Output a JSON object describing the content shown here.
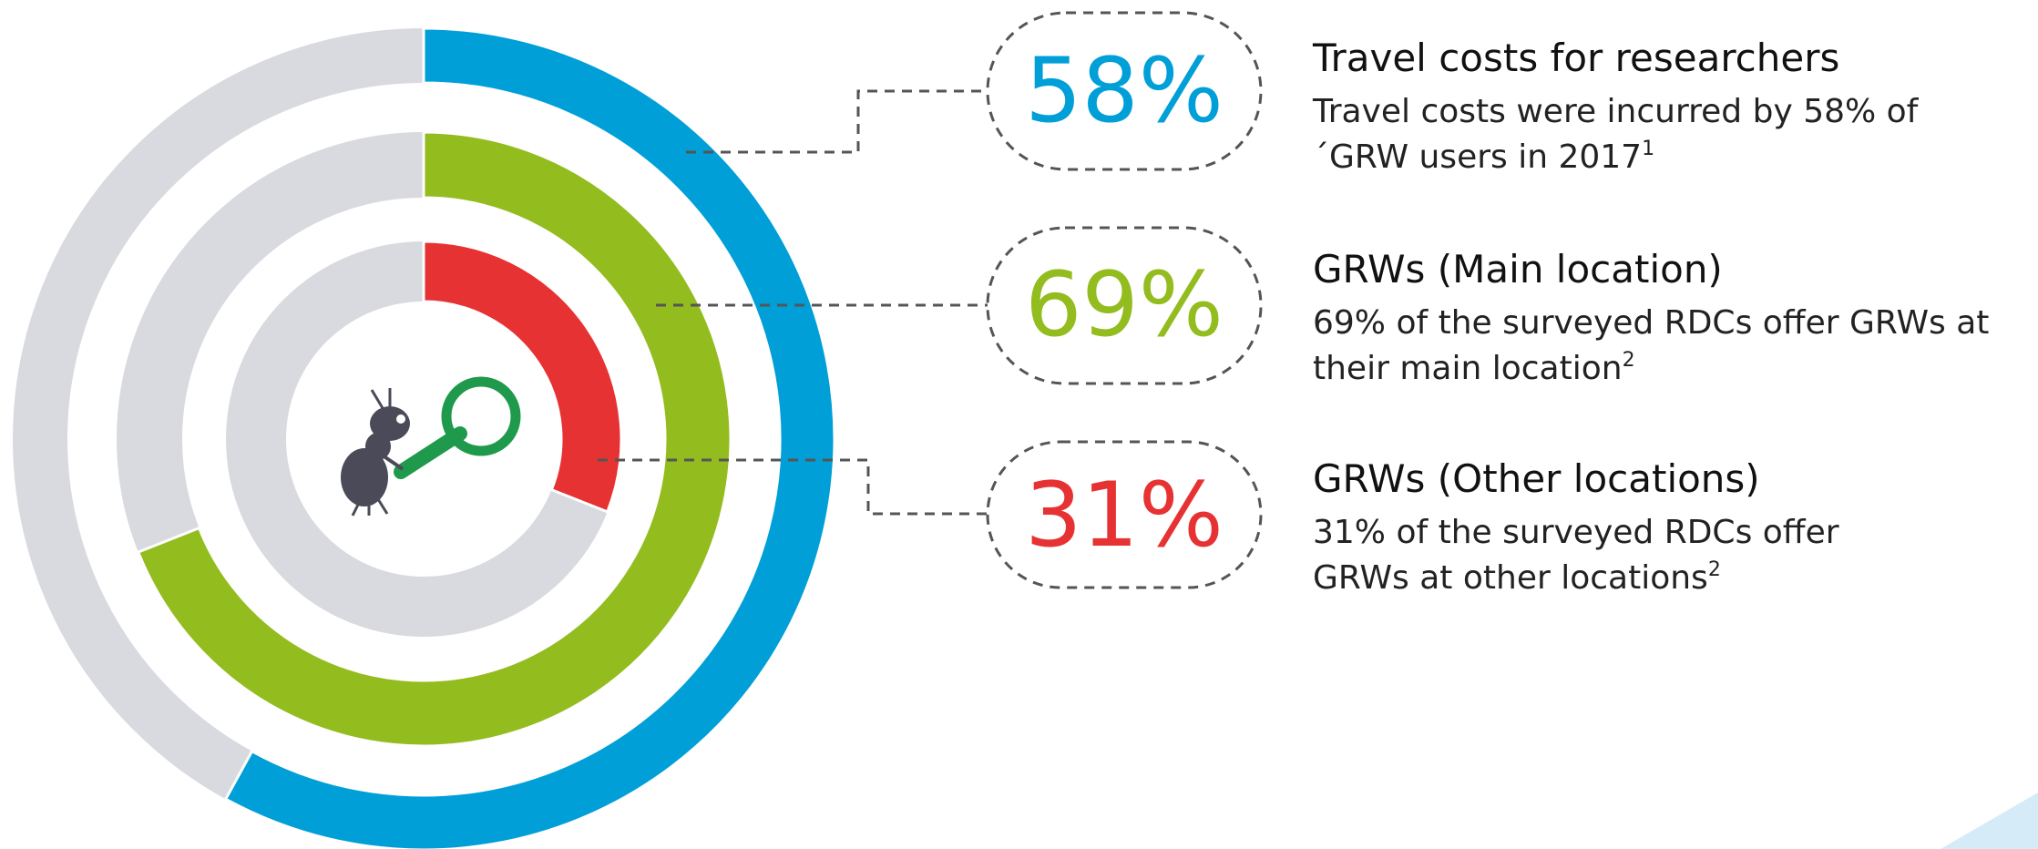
{
  "chart_data": {
    "type": "radial",
    "series": [
      {
        "name": "Travel costs for researchers",
        "color": "#009fd8",
        "values": [
          58
        ],
        "value_labels": [
          "58%"
        ],
        "description": [
          "Travel costs were incurred by 58% of",
          "´GRW users in 2017"
        ],
        "footnote": "1"
      },
      {
        "name": "GRWs (Main location)",
        "color": "#93bc1f",
        "values": [
          69
        ],
        "value_labels": [
          "69%"
        ],
        "description": [
          "69% of the surveyed RDCs offer GRWs at",
          "their main location"
        ],
        "footnote": "2"
      },
      {
        "name": "GRWs (Other locations)",
        "color": "#e63232",
        "values": [
          31
        ],
        "value_labels": [
          "31%"
        ],
        "description": [
          "31% of the surveyed RDCs offer",
          "GRWs at other locations"
        ],
        "footnote": "2"
      }
    ],
    "track_color": "#d9dadf"
  }
}
